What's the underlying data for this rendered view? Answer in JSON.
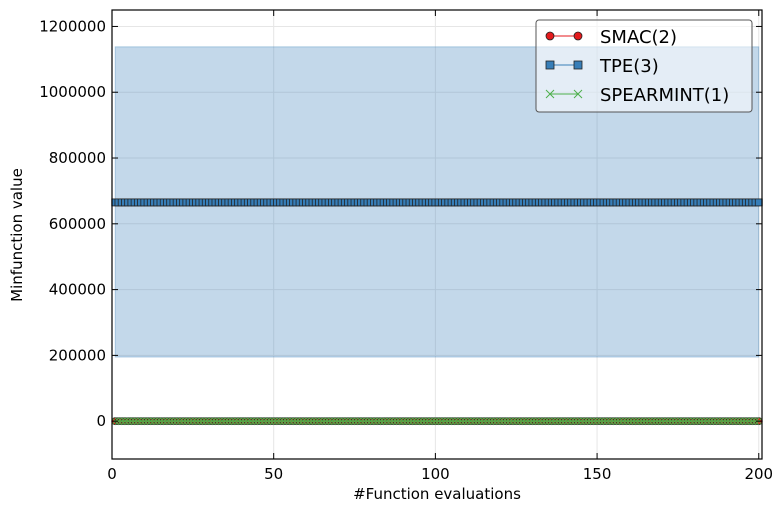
{
  "chart_data": {
    "type": "line",
    "xlabel": "#Function evaluations",
    "ylabel": "Minfunction value",
    "xlim": [
      0,
      201
    ],
    "ylim": [
      -115000,
      1250000
    ],
    "x_ticks": [
      0,
      50,
      100,
      150,
      200
    ],
    "y_ticks": [
      0,
      200000,
      400000,
      600000,
      800000,
      1000000,
      1200000
    ],
    "x_tick_labels": [
      "0",
      "50",
      "100",
      "150",
      "200"
    ],
    "y_tick_labels": [
      "0",
      "200000",
      "400000",
      "600000",
      "800000",
      "1000000",
      "1200000"
    ],
    "grid": true,
    "legend_position": "top-right",
    "x_start": 1,
    "x_end": 200,
    "series": [
      {
        "name": "SMAC(2)",
        "marker": "circle",
        "color": "#e41a1c",
        "value": 0,
        "band": null
      },
      {
        "name": "TPE(3)",
        "marker": "square",
        "color": "#377eb8",
        "value": 665000,
        "band": [
          195000,
          1138000
        ]
      },
      {
        "name": "SPEARMINT(1)",
        "marker": "x",
        "color": "#4daf4a",
        "value": 0,
        "band": null
      }
    ]
  }
}
